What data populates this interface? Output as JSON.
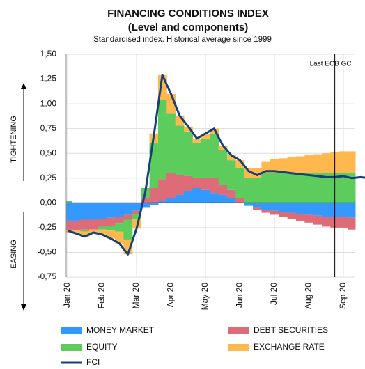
{
  "chart_data": {
    "type": "stacked-area",
    "title": "FINANCING CONDITIONS INDEX",
    "subtitle": "(Level and components)",
    "note": "Standardised index. Historical average since 1999",
    "annotation": "Last ECB GC",
    "upper_label": "TIGHTENING",
    "lower_label": "EASING",
    "categories": [
      "Jan 20",
      null,
      null,
      null,
      "Feb 20",
      null,
      null,
      null,
      "Mar 20",
      null,
      null,
      null,
      "Apr 20",
      null,
      null,
      null,
      "May 20",
      null,
      null,
      null,
      "Jun 20",
      null,
      null,
      null,
      "Jul 20",
      null,
      null,
      null,
      "Aug 20",
      null,
      null,
      null,
      "Sep 20",
      null,
      null,
      null,
      null,
      null
    ],
    "series": [
      {
        "name": "MONEY MARKET",
        "color": "#3399ff",
        "values": [
          -0.18,
          -0.18,
          -0.17,
          -0.17,
          -0.16,
          -0.15,
          -0.14,
          -0.12,
          -0.08,
          -0.05,
          -0.02,
          0.02,
          0.05,
          0.08,
          0.12,
          0.15,
          0.13,
          0.1,
          0.08,
          0.05,
          0.0,
          -0.03,
          -0.05,
          -0.07,
          -0.08,
          -0.09,
          -0.1,
          -0.11,
          -0.12,
          -0.13,
          -0.14,
          -0.14,
          -0.14,
          -0.15,
          -0.15,
          -0.15,
          -0.15,
          -0.15
        ]
      },
      {
        "name": "DEBT SECURITIES",
        "color": "#de6b78",
        "values": [
          -0.1,
          -0.1,
          -0.1,
          -0.1,
          -0.08,
          -0.08,
          -0.07,
          -0.05,
          -0.03,
          0.05,
          0.15,
          0.22,
          0.25,
          0.2,
          0.15,
          0.1,
          0.12,
          0.15,
          0.1,
          0.08,
          0.05,
          0.0,
          -0.02,
          -0.03,
          -0.04,
          -0.05,
          -0.06,
          -0.07,
          -0.08,
          -0.09,
          -0.1,
          -0.11,
          -0.11,
          -0.12,
          -0.12,
          -0.13,
          -0.13,
          -0.13
        ]
      },
      {
        "name": "EQUITY",
        "color": "#5ccc5c",
        "values": [
          0.02,
          0.0,
          -0.02,
          0.0,
          -0.03,
          -0.05,
          -0.08,
          -0.2,
          -0.05,
          0.1,
          0.45,
          0.8,
          0.6,
          0.5,
          0.45,
          0.35,
          0.4,
          0.45,
          0.35,
          0.3,
          0.3,
          0.25,
          0.25,
          0.3,
          0.3,
          0.3,
          0.3,
          0.3,
          0.3,
          0.3,
          0.3,
          0.3,
          0.3,
          0.3,
          0.3,
          0.3,
          0.3,
          0.3
        ]
      },
      {
        "name": "EXCHANGE RATE",
        "color": "#ffb84d",
        "values": [
          -0.02,
          -0.03,
          -0.05,
          -0.03,
          -0.05,
          -0.08,
          -0.12,
          -0.15,
          -0.1,
          0.0,
          0.1,
          0.25,
          0.2,
          0.1,
          0.05,
          0.05,
          0.05,
          0.05,
          0.05,
          0.05,
          0.08,
          0.1,
          0.1,
          0.12,
          0.14,
          0.15,
          0.16,
          0.17,
          0.18,
          0.19,
          0.2,
          0.21,
          0.22,
          0.22,
          0.23,
          0.23,
          0.22,
          0.22
        ]
      }
    ],
    "line_series": {
      "name": "FCI",
      "color": "#16407a",
      "values": [
        -0.28,
        -0.31,
        -0.34,
        -0.3,
        -0.32,
        -0.36,
        -0.41,
        -0.52,
        -0.26,
        0.1,
        0.68,
        1.29,
        1.1,
        0.88,
        0.77,
        0.65,
        0.7,
        0.75,
        0.58,
        0.48,
        0.43,
        0.32,
        0.28,
        0.32,
        0.32,
        0.31,
        0.3,
        0.29,
        0.28,
        0.27,
        0.26,
        0.26,
        0.27,
        0.25,
        0.26,
        0.25,
        0.24,
        0.24
      ]
    },
    "marker_index": 31,
    "ylim": [
      -0.75,
      1.5
    ],
    "yticks": [
      {
        "value": -0.75,
        "label": "-0,75"
      },
      {
        "value": -0.5,
        "label": "-0,50"
      },
      {
        "value": -0.25,
        "label": "-0,25"
      },
      {
        "value": 0,
        "label": "0,00"
      },
      {
        "value": 0.25,
        "label": "0,25"
      },
      {
        "value": 0.5,
        "label": "0,50"
      },
      {
        "value": 0.75,
        "label": "0,75"
      },
      {
        "value": 1,
        "label": "1,00"
      },
      {
        "value": 1.25,
        "label": "1,25"
      },
      {
        "value": 1.5,
        "label": "1,50"
      }
    ],
    "grid": true
  }
}
